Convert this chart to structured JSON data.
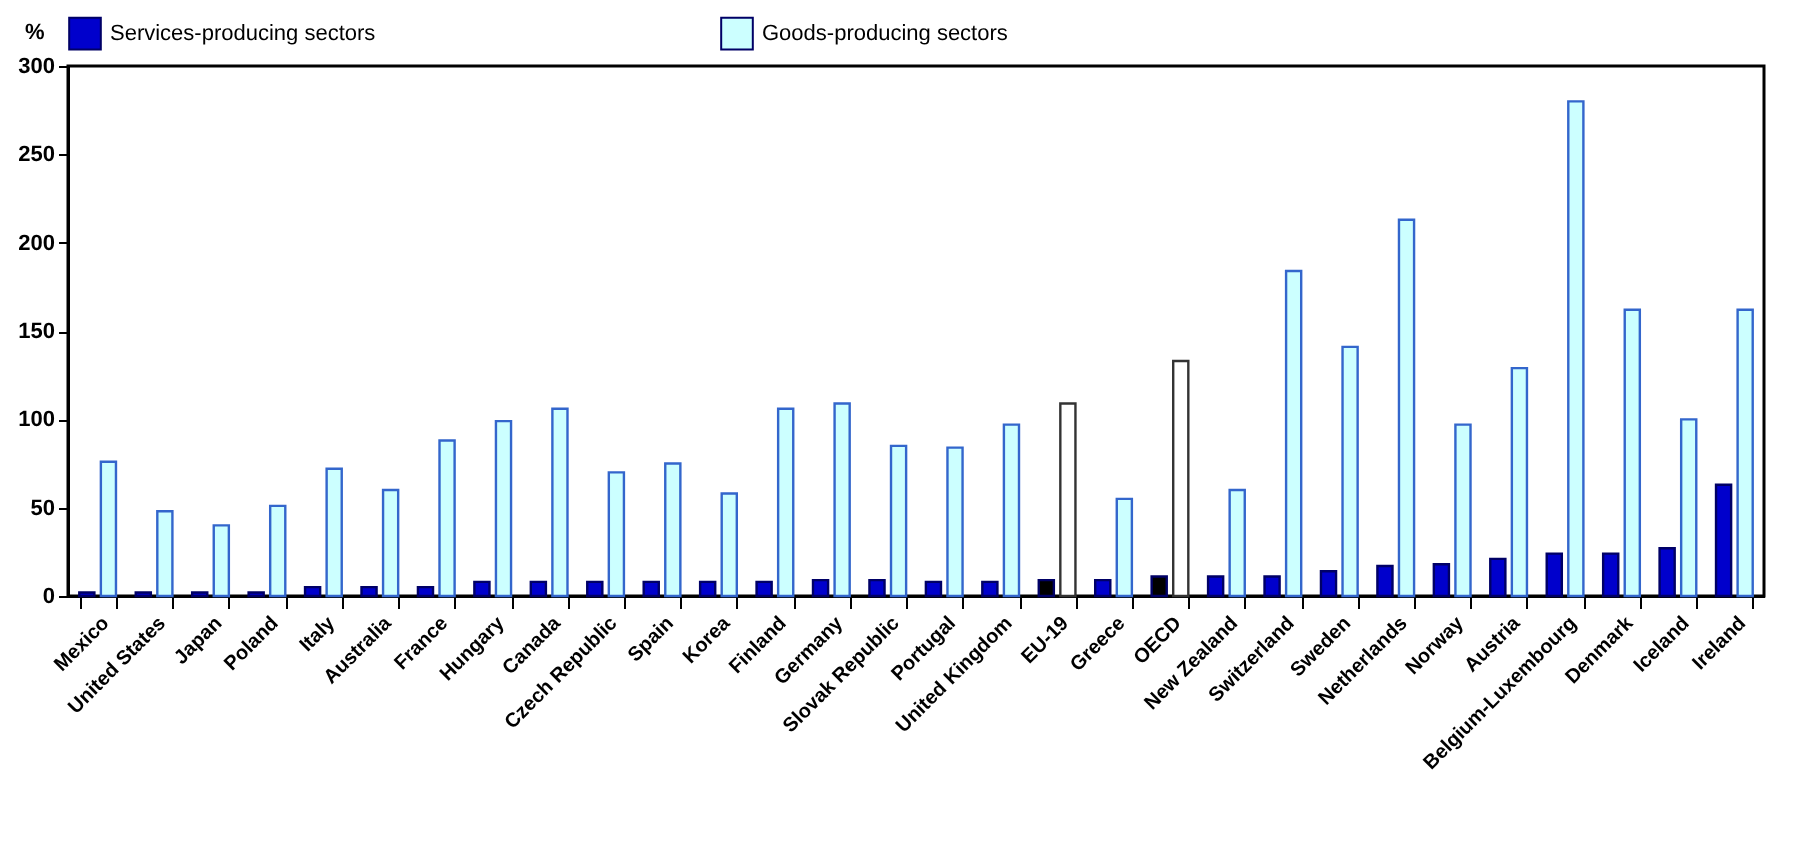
{
  "chart_data": {
    "type": "bar",
    "ylabel": "%",
    "categories": [
      "Mexico",
      "United States",
      "Japan",
      "Poland",
      "Italy",
      "Australia",
      "France",
      "Hungary",
      "Canada",
      "Czech Republic",
      "Spain",
      "Korea",
      "Finland",
      "Germany",
      "Slovak Republic",
      "Portugal",
      "United Kingdom",
      "EU-19",
      "Greece",
      "OECD",
      "New Zealand",
      "Switzerland",
      "Sweden",
      "Netherlands",
      "Norway",
      "Austria",
      "Belgium-Luxembourg",
      "Denmark",
      "Iceland",
      "Ireland"
    ],
    "series": [
      {
        "name": "Services-producing sectors",
        "color": "#0000cc",
        "colors": [
          "#0000cc",
          "#0000cc",
          "#0000cc",
          "#0000cc",
          "#0000cc",
          "#0000cc",
          "#0000cc",
          "#0000cc",
          "#0000cc",
          "#0000cc",
          "#0000cc",
          "#0000cc",
          "#0000cc",
          "#0000cc",
          "#0000cc",
          "#0000cc",
          "#0000cc",
          "#000000",
          "#0000cc",
          "#000000",
          "#0000cc",
          "#0000cc",
          "#0000cc",
          "#0000cc",
          "#0000cc",
          "#0000cc",
          "#0000cc",
          "#0000cc",
          "#0000cc",
          "#0000cc"
        ],
        "values": [
          2,
          2,
          2,
          2,
          5,
          5,
          5,
          8,
          8,
          8,
          8,
          8,
          8,
          9,
          9,
          8,
          8,
          9,
          9,
          11,
          11,
          11,
          14,
          17,
          18,
          21,
          24,
          24,
          27,
          63
        ]
      },
      {
        "name": "Goods-producing sectors",
        "color": "#ccffff",
        "colors": [
          "#ccffff",
          "#ccffff",
          "#ccffff",
          "#ccffff",
          "#ccffff",
          "#ccffff",
          "#ccffff",
          "#ccffff",
          "#ccffff",
          "#ccffff",
          "#ccffff",
          "#ccffff",
          "#ccffff",
          "#ccffff",
          "#ccffff",
          "#ccffff",
          "#ccffff",
          "#ffffff",
          "#ccffff",
          "#ffffff",
          "#ccffff",
          "#ccffff",
          "#ccffff",
          "#ccffff",
          "#ccffff",
          "#ccffff",
          "#ccffff",
          "#ccffff",
          "#ccffff",
          "#ccffff"
        ],
        "values": [
          76,
          48,
          40,
          51,
          72,
          60,
          88,
          99,
          106,
          70,
          75,
          58,
          106,
          109,
          85,
          84,
          97,
          109,
          55,
          133,
          60,
          184,
          141,
          213,
          97,
          129,
          280,
          162,
          100,
          162
        ]
      }
    ],
    "ylim": [
      0,
      300
    ],
    "yticks": [
      0,
      50,
      100,
      150,
      200,
      250,
      300
    ],
    "grid": false,
    "legend": "top"
  }
}
